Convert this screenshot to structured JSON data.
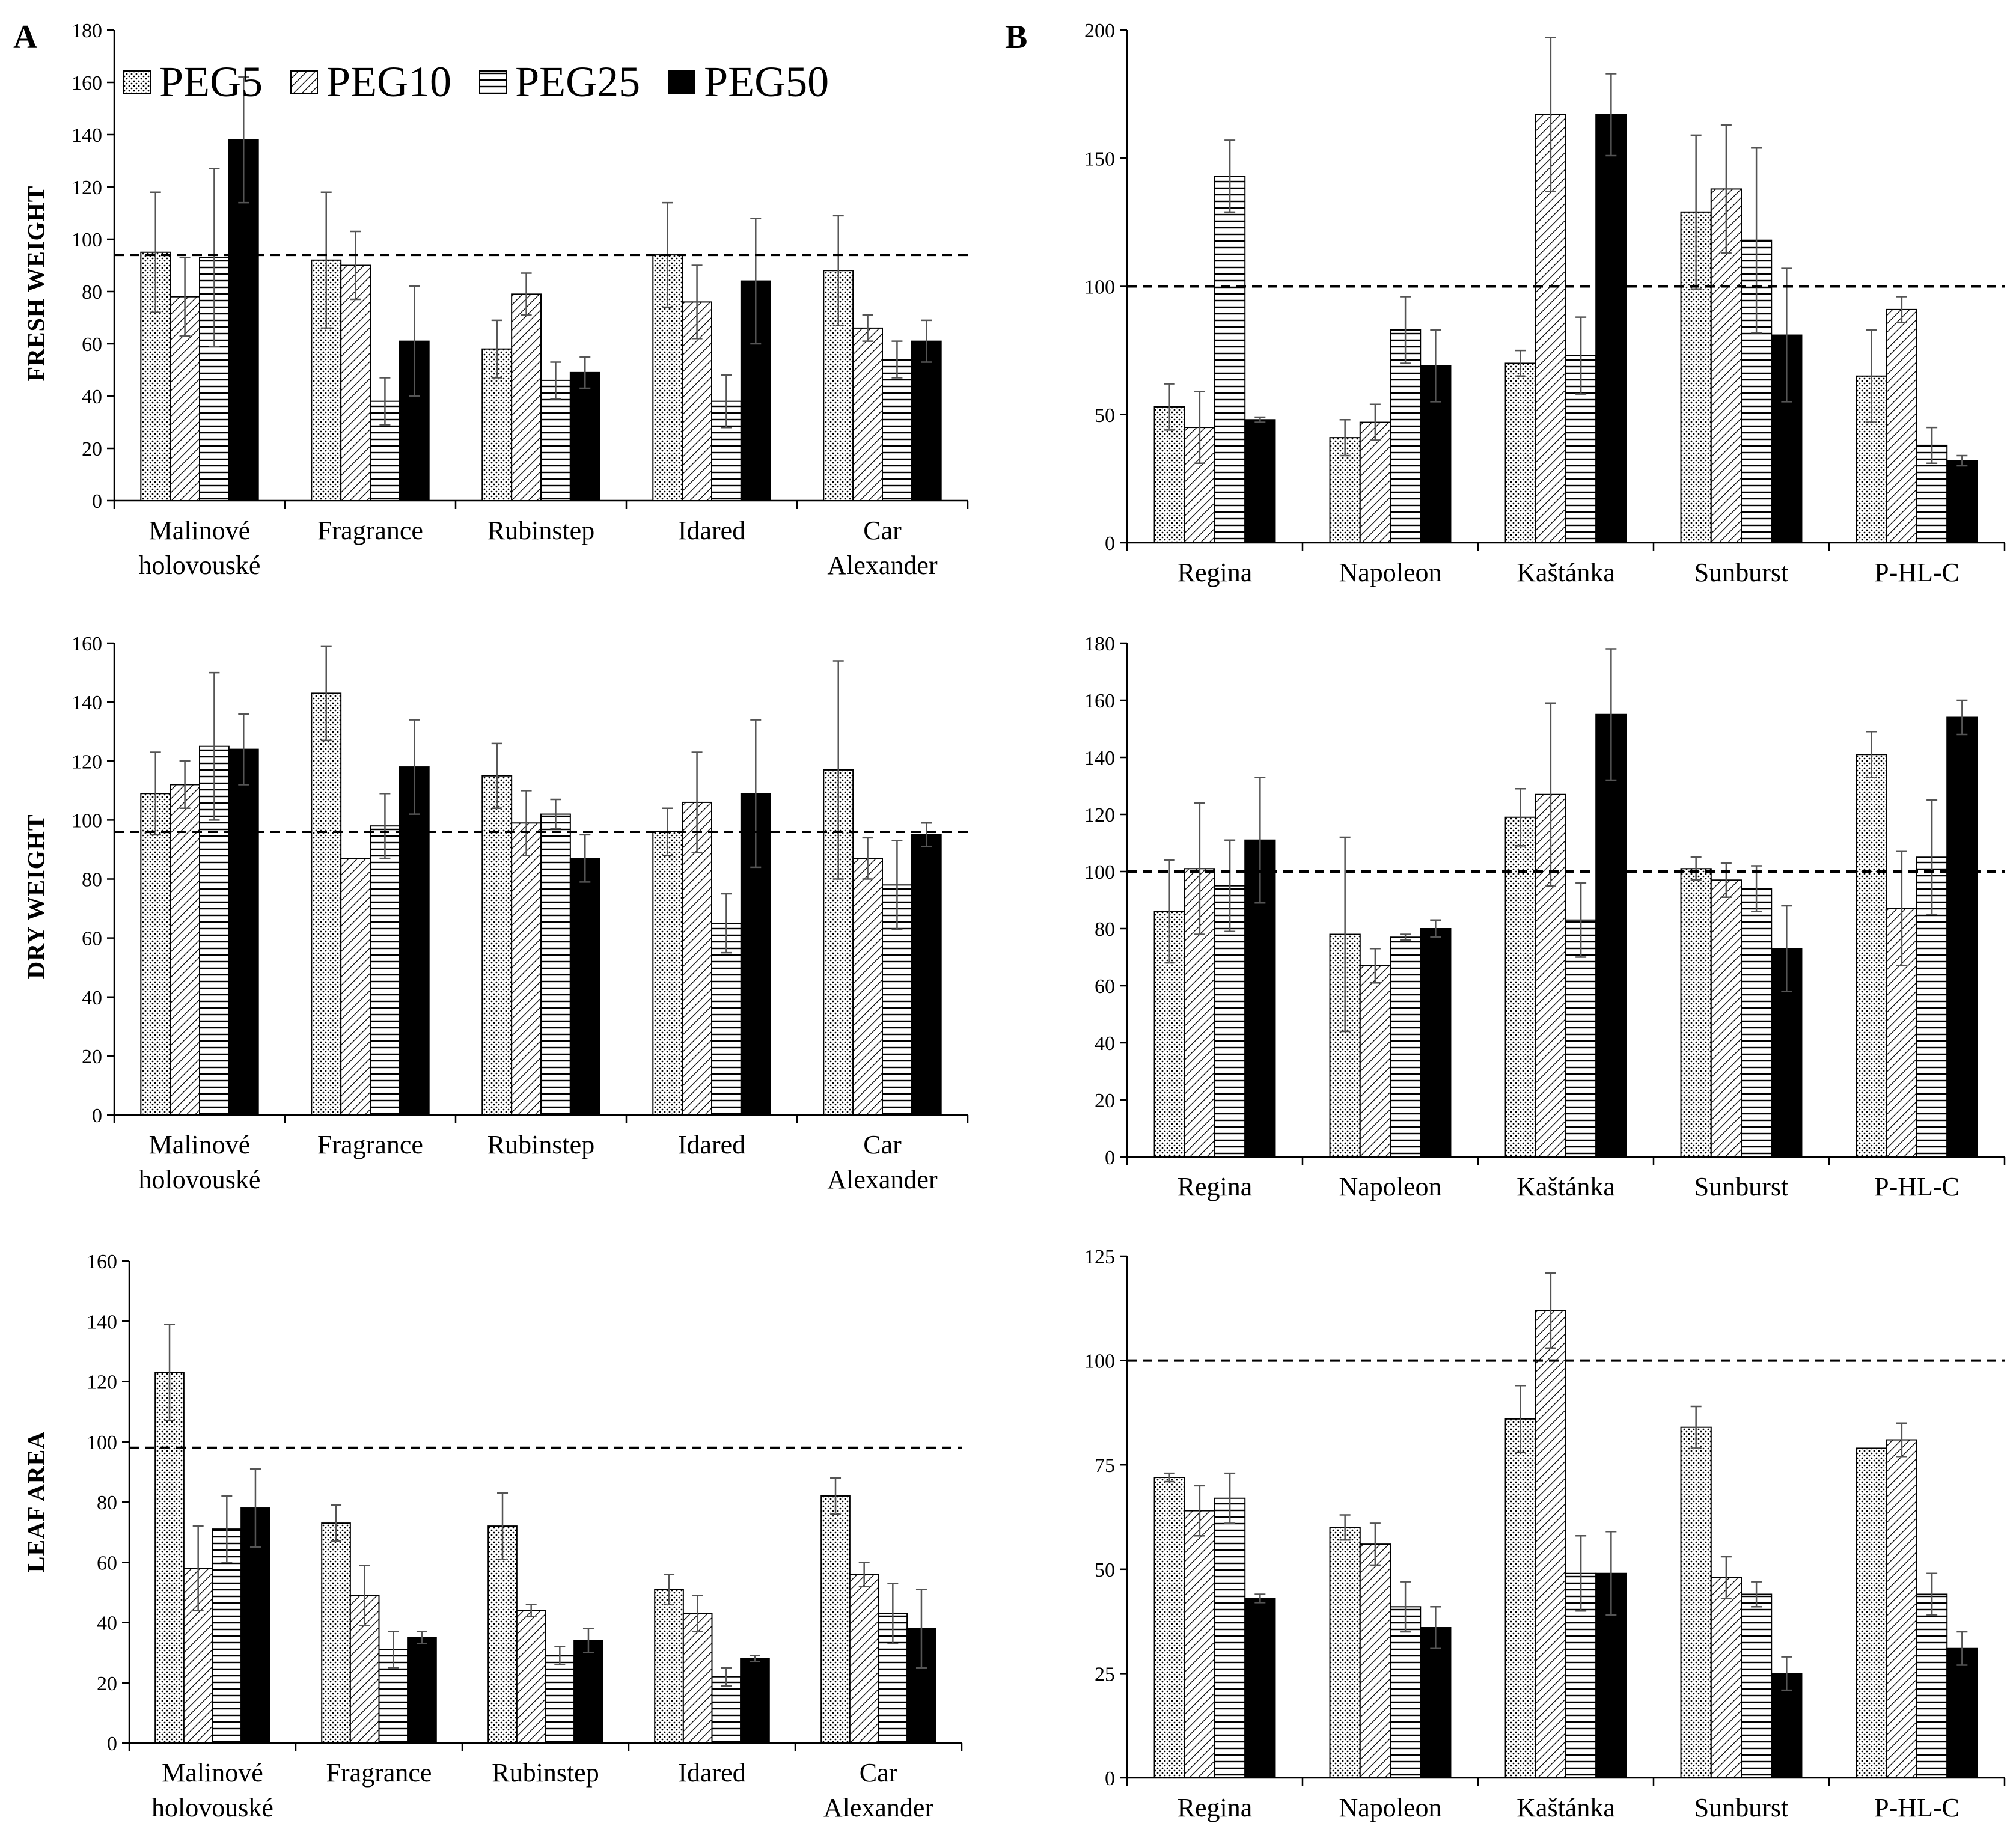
{
  "panel_labels": {
    "a": "A",
    "b": "B"
  },
  "row_labels": {
    "fresh": "FRESH WEIGHT",
    "dry": "DRY WEIGHT",
    "leaf": "LEAF AREA"
  },
  "legend": [
    {
      "name": "PEG5",
      "pattern": "dots"
    },
    {
      "name": "PEG10",
      "pattern": "diag"
    },
    {
      "name": "PEG25",
      "pattern": "horiz"
    },
    {
      "name": "PEG50",
      "pattern": "solid"
    }
  ],
  "colors": {
    "ink": "#000000",
    "bar_fill": "#ffffff",
    "solid": "#000000",
    "error_bar": "#555555"
  },
  "chart_data": [
    {
      "id": "fw_apple",
      "type": "bar",
      "title": "",
      "ylabel": "FRESH WEIGHT",
      "ylim": [
        0,
        180
      ],
      "yticks": [
        0,
        20,
        40,
        60,
        80,
        100,
        120,
        140,
        160,
        180
      ],
      "reference_line": 94,
      "grid": false,
      "categories": [
        [
          "Malinové",
          "holovouské"
        ],
        [
          "Fragrance"
        ],
        [
          "Rubinstep"
        ],
        [
          "Idared"
        ],
        [
          "Car",
          "Alexander"
        ]
      ],
      "series": [
        {
          "name": "PEG5",
          "values": [
            95,
            92,
            58,
            94,
            88
          ],
          "errors": [
            23,
            26,
            11,
            20,
            21
          ]
        },
        {
          "name": "PEG10",
          "values": [
            78,
            90,
            79,
            76,
            66
          ],
          "errors": [
            15,
            13,
            8,
            14,
            5
          ]
        },
        {
          "name": "PEG25",
          "values": [
            93,
            38,
            46,
            38,
            54
          ],
          "errors": [
            34,
            9,
            7,
            10,
            7
          ]
        },
        {
          "name": "PEG50",
          "values": [
            138,
            61,
            49,
            84,
            61
          ],
          "errors": [
            24,
            21,
            6,
            24,
            8
          ]
        }
      ]
    },
    {
      "id": "fw_cherry",
      "type": "bar",
      "title": "",
      "ylabel": "",
      "ylim": [
        0,
        200
      ],
      "yticks": [
        0,
        50,
        100,
        150,
        200
      ],
      "reference_line": 100,
      "grid": false,
      "categories": [
        [
          "Regina"
        ],
        [
          "Napoleon"
        ],
        [
          "Kaštánka"
        ],
        [
          "Sunburst"
        ],
        [
          "P-HL-C"
        ]
      ],
      "series": [
        {
          "name": "PEG5",
          "values": [
            53,
            41,
            70,
            129,
            65
          ],
          "errors": [
            9,
            7,
            5,
            30,
            18
          ]
        },
        {
          "name": "PEG10",
          "values": [
            45,
            47,
            167,
            138,
            91
          ],
          "errors": [
            14,
            7,
            30,
            25,
            5
          ]
        },
        {
          "name": "PEG25",
          "values": [
            143,
            83,
            73,
            118,
            38
          ],
          "errors": [
            14,
            13,
            15,
            36,
            7
          ]
        },
        {
          "name": "PEG50",
          "values": [
            48,
            69,
            167,
            81,
            32
          ],
          "errors": [
            1,
            14,
            16,
            26,
            2
          ]
        }
      ]
    },
    {
      "id": "dw_apple",
      "type": "bar",
      "title": "",
      "ylabel": "DRY WEIGHT",
      "ylim": [
        0,
        160
      ],
      "yticks": [
        0,
        20,
        40,
        60,
        80,
        100,
        120,
        140,
        160
      ],
      "reference_line": 96,
      "grid": false,
      "categories": [
        [
          "Malinové",
          "holovouské"
        ],
        [
          "Fragrance"
        ],
        [
          "Rubinstep"
        ],
        [
          "Idared"
        ],
        [
          "Car",
          "Alexander"
        ]
      ],
      "series": [
        {
          "name": "PEG5",
          "values": [
            109,
            143,
            115,
            96,
            117
          ],
          "errors": [
            14,
            16,
            11,
            8,
            37
          ]
        },
        {
          "name": "PEG10",
          "values": [
            112,
            87,
            99,
            106,
            87
          ],
          "errors": [
            8,
            0,
            11,
            17,
            7
          ]
        },
        {
          "name": "PEG25",
          "values": [
            125,
            98,
            102,
            65,
            78
          ],
          "errors": [
            25,
            11,
            5,
            10,
            15
          ]
        },
        {
          "name": "PEG50",
          "values": [
            124,
            118,
            87,
            109,
            95
          ],
          "errors": [
            12,
            16,
            8,
            25,
            4
          ]
        }
      ]
    },
    {
      "id": "dw_cherry",
      "type": "bar",
      "title": "",
      "ylabel": "",
      "ylim": [
        0,
        180
      ],
      "yticks": [
        0,
        20,
        40,
        60,
        80,
        100,
        120,
        140,
        160,
        180
      ],
      "reference_line": 100,
      "grid": false,
      "categories": [
        [
          "Regina"
        ],
        [
          "Napoleon"
        ],
        [
          "Kaštánka"
        ],
        [
          "Sunburst"
        ],
        [
          "P-HL-C"
        ]
      ],
      "series": [
        {
          "name": "PEG5",
          "values": [
            86,
            78,
            119,
            101,
            141
          ],
          "errors": [
            18,
            34,
            10,
            4,
            8
          ]
        },
        {
          "name": "PEG10",
          "values": [
            101,
            67,
            127,
            97,
            87
          ],
          "errors": [
            23,
            6,
            32,
            6,
            20
          ]
        },
        {
          "name": "PEG25",
          "values": [
            95,
            77,
            83,
            94,
            105
          ],
          "errors": [
            16,
            1,
            13,
            8,
            20
          ]
        },
        {
          "name": "PEG50",
          "values": [
            111,
            80,
            155,
            73,
            154
          ],
          "errors": [
            22,
            3,
            23,
            15,
            6
          ]
        }
      ]
    },
    {
      "id": "la_apple",
      "type": "bar",
      "title": "",
      "ylabel": "LEAF AREA",
      "ylim": [
        0,
        160
      ],
      "yticks": [
        0,
        20,
        40,
        60,
        80,
        100,
        120,
        140,
        160
      ],
      "reference_line": 98,
      "grid": false,
      "categories": [
        [
          "Malinové",
          "holovouské"
        ],
        [
          "Fragrance"
        ],
        [
          "Rubinstep"
        ],
        [
          "Idared"
        ],
        [
          "Car",
          "Alexander"
        ]
      ],
      "series": [
        {
          "name": "PEG5",
          "values": [
            123,
            73,
            72,
            51,
            82
          ],
          "errors": [
            16,
            6,
            11,
            5,
            6
          ]
        },
        {
          "name": "PEG10",
          "values": [
            58,
            49,
            44,
            43,
            56
          ],
          "errors": [
            14,
            10,
            2,
            6,
            4
          ]
        },
        {
          "name": "PEG25",
          "values": [
            71,
            31,
            29,
            22,
            43
          ],
          "errors": [
            11,
            6,
            3,
            3,
            10
          ]
        },
        {
          "name": "PEG50",
          "values": [
            78,
            35,
            34,
            28,
            38
          ],
          "errors": [
            13,
            2,
            4,
            1,
            13
          ]
        }
      ]
    },
    {
      "id": "la_cherry",
      "type": "bar",
      "title": "",
      "ylabel": "",
      "ylim": [
        0,
        125
      ],
      "yticks": [
        0,
        25,
        50,
        75,
        100,
        125
      ],
      "reference_line": 100,
      "grid": false,
      "categories": [
        [
          "Regina"
        ],
        [
          "Napoleon"
        ],
        [
          "Kaštánka"
        ],
        [
          "Sunburst"
        ],
        [
          "P-HL-C"
        ]
      ],
      "series": [
        {
          "name": "PEG5",
          "values": [
            72,
            60,
            86,
            84,
            79
          ],
          "errors": [
            1,
            3,
            8,
            5,
            0
          ]
        },
        {
          "name": "PEG10",
          "values": [
            64,
            56,
            112,
            48,
            81
          ],
          "errors": [
            6,
            5,
            9,
            5,
            4
          ]
        },
        {
          "name": "PEG25",
          "values": [
            67,
            41,
            49,
            44,
            44
          ],
          "errors": [
            6,
            6,
            9,
            3,
            5
          ]
        },
        {
          "name": "PEG50",
          "values": [
            43,
            36,
            49,
            25,
            31
          ],
          "errors": [
            1,
            5,
            10,
            4,
            4
          ]
        }
      ]
    }
  ]
}
